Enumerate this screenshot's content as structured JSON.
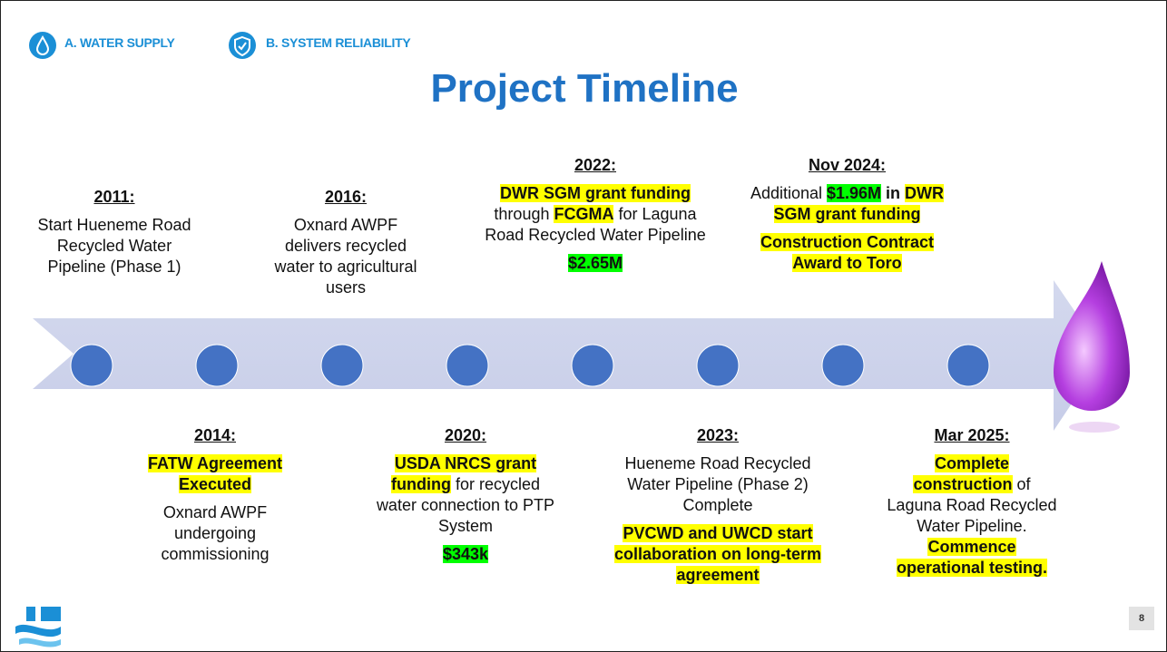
{
  "header": {
    "tags": [
      "A. WATER SUPPLY",
      "B. SYSTEM RELIABILITY"
    ],
    "title": "Project Timeline"
  },
  "timeline": {
    "top": [
      {
        "date": "2011:",
        "paragraphs": [
          [
            {
              "text": "Start Hueneme Road Recycled Water Pipeline (Phase 1)"
            }
          ]
        ]
      },
      {
        "date": "2016:",
        "paragraphs": [
          [
            {
              "text": "Oxnard AWPF delivers recycled water to agricultural users"
            }
          ]
        ]
      },
      {
        "date": "2022:",
        "paragraphs": [
          [
            {
              "text": "DWR SGM grant funding",
              "bold": true,
              "highlight": "#ffff00"
            },
            {
              "text": " through "
            },
            {
              "text": "FCGMA",
              "bold": true,
              "highlight": "#ffff00"
            },
            {
              "text": " for Laguna Road Recycled Water Pipeline"
            }
          ],
          [
            {
              "text": "$2.65M",
              "bold": true,
              "highlight": "#00ff00"
            }
          ]
        ]
      },
      {
        "date": "Nov 2024:",
        "paragraphs": [
          [
            {
              "text": "Additional "
            },
            {
              "text": "$1.96M",
              "bold": true,
              "highlight": "#00ff00"
            },
            {
              "text": " in ",
              "bold": true
            },
            {
              "text": "DWR SGM grant funding",
              "bold": true,
              "highlight": "#ffff00"
            }
          ],
          [
            {
              "text": "Construction Contract Award to Toro",
              "bold": true,
              "highlight": "#ffff00"
            }
          ]
        ]
      }
    ],
    "bottom": [
      {
        "date": "2014:",
        "paragraphs": [
          [
            {
              "text": "FATW Agreement Executed",
              "bold": true,
              "highlight": "#ffff00"
            }
          ],
          [
            {
              "text": "Oxnard AWPF undergoing commissioning"
            }
          ]
        ]
      },
      {
        "date": "2020:",
        "paragraphs": [
          [
            {
              "text": "USDA NRCS grant funding",
              "bold": true,
              "highlight": "#ffff00"
            },
            {
              "text": " for recycled water connection to PTP System"
            }
          ],
          [
            {
              "text": "$343k",
              "bold": true,
              "highlight": "#00ff00"
            }
          ]
        ]
      },
      {
        "date": "2023:",
        "paragraphs": [
          [
            {
              "text": "Hueneme Road Recycled Water Pipeline (Phase 2) Complete"
            }
          ],
          [
            {
              "text": "PVCWD and UWCD start collaboration on long-term agreement",
              "bold": true,
              "highlight": "#ffff00"
            }
          ]
        ]
      },
      {
        "date": "Mar 2025:",
        "paragraphs": [
          [
            {
              "text": "Complete construction",
              "bold": true,
              "highlight": "#ffff00"
            },
            {
              "text": " of Laguna Road Recycled Water Pipeline. "
            },
            {
              "text": "Commence operational testing.",
              "bold": true,
              "highlight": "#ffff00"
            }
          ]
        ]
      }
    ]
  },
  "footer": {
    "page": "8"
  }
}
